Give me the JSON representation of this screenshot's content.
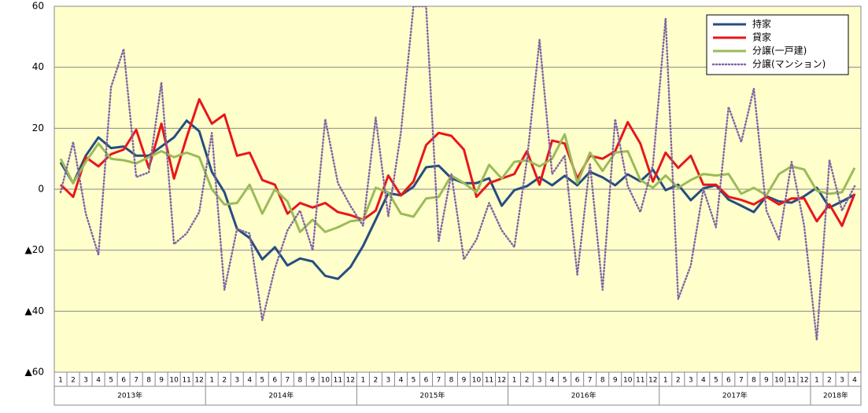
{
  "chart_data": {
    "type": "line",
    "categories": [
      "1",
      "2",
      "3",
      "4",
      "5",
      "6",
      "7",
      "8",
      "9",
      "10",
      "11",
      "12",
      "1",
      "2",
      "3",
      "4",
      "5",
      "6",
      "7",
      "8",
      "9",
      "10",
      "11",
      "12",
      "1",
      "2",
      "3",
      "4",
      "5",
      "6",
      "7",
      "8",
      "9",
      "10",
      "11",
      "12",
      "1",
      "2",
      "3",
      "4",
      "5",
      "6",
      "7",
      "8",
      "9",
      "10",
      "11",
      "12",
      "1",
      "2",
      "3",
      "4",
      "5",
      "6",
      "7",
      "8",
      "9",
      "10",
      "11",
      "12",
      "1",
      "2",
      "3",
      "4"
    ],
    "years": [
      "2013年",
      "2014年",
      "2015年",
      "2016年",
      "2017年",
      "2018年"
    ],
    "ylim": [
      -60,
      60
    ],
    "yticks": [
      60,
      40,
      20,
      0,
      {
        "value": -20,
        "label": "▲20"
      },
      {
        "value": -40,
        "label": "▲40"
      },
      {
        "value": -60,
        "label": "▲60"
      }
    ],
    "grid": true,
    "legend": "top-right",
    "series": [
      {
        "name": "持家",
        "color": "#264d80",
        "style": "solid",
        "values": [
          8.8,
          2,
          11,
          17,
          13.5,
          14,
          11,
          11,
          14,
          17,
          22.5,
          19,
          5.7,
          -1,
          -13,
          -16,
          -23,
          -19,
          -25,
          -22.7,
          -23.7,
          -28.4,
          -29.4,
          -25.5,
          -18.6,
          -10,
          -1.3,
          -2,
          0.8,
          7.2,
          7.7,
          3.6,
          2,
          2,
          3.6,
          -5.4,
          -0.3,
          1,
          3.9,
          1.3,
          4.4,
          1.3,
          5.7,
          3.9,
          1.3,
          4.9,
          2.6,
          6.4,
          -0.3,
          1.5,
          -3.6,
          0.3,
          1.3,
          -3.4,
          -5.4,
          -7.5,
          -2.3,
          -4,
          -4.4,
          -2.3,
          0.5,
          -6,
          -4,
          -1.8
        ]
      },
      {
        "name": "貸家",
        "color": "#e8161b",
        "style": "solid",
        "values": [
          1.5,
          -2.5,
          10.5,
          7.5,
          11.5,
          13,
          19.5,
          7,
          21.5,
          3.5,
          17,
          29.5,
          21.5,
          24.5,
          11,
          12,
          3,
          1.5,
          -8,
          -4.5,
          -6,
          -4.5,
          -7.5,
          -8.5,
          -10,
          -7,
          4.5,
          -2,
          2.5,
          14.5,
          18.5,
          17.5,
          13,
          -2.5,
          2,
          3.5,
          5,
          12.5,
          1.5,
          16,
          15,
          3.5,
          11,
          10,
          12.5,
          22,
          15,
          2.5,
          12,
          7,
          11,
          1.5,
          1.5,
          -2.5,
          -3.5,
          -5,
          -2.5,
          -5,
          -3,
          -3,
          -10.5,
          -5,
          -12,
          -1.5
        ]
      },
      {
        "name": "分譲(一戸建)",
        "color": "#9bbb59",
        "style": "solid",
        "values": [
          10,
          2,
          9,
          15,
          10,
          9.5,
          8.5,
          10.5,
          12.5,
          10.5,
          12,
          10.5,
          0,
          -5,
          -4.5,
          1.5,
          -8,
          0,
          -4,
          -14,
          -10,
          -14,
          -12.5,
          -10.5,
          -10,
          0.5,
          -1,
          -8,
          -9,
          -3,
          -2.5,
          4.5,
          2,
          -1,
          8,
          3.5,
          9,
          9.5,
          7.5,
          10,
          18,
          2,
          12,
          6,
          12,
          12.5,
          3,
          0.5,
          4.5,
          0.5,
          3,
          5,
          4.5,
          5,
          -1.5,
          0.5,
          -2,
          5,
          7.5,
          6.5,
          -0.5,
          -1.5,
          -1,
          7
        ]
      },
      {
        "name": "分譲(マンション)",
        "color": "#8064a2",
        "style": "dotted",
        "values": [
          -1,
          15.5,
          -8,
          -21.5,
          33.5,
          46,
          4,
          5.5,
          35,
          -18,
          -14.5,
          -7.5,
          18.5,
          -33,
          -13,
          -14.5,
          -43,
          -26,
          -13.5,
          -7,
          -20,
          23,
          2,
          -5.5,
          -12,
          23.5,
          -9,
          18.5,
          60,
          60,
          -17,
          5,
          -23,
          -16.5,
          -4.5,
          -13.5,
          -19,
          9.5,
          49,
          5,
          11,
          -28,
          8.5,
          -33,
          23,
          1,
          -7.5,
          8,
          56,
          -36,
          -25,
          0,
          -12.5,
          27,
          15.5,
          33,
          -7,
          -16.5,
          9,
          -12,
          -49.5,
          9.5,
          -7,
          1
        ]
      }
    ]
  }
}
